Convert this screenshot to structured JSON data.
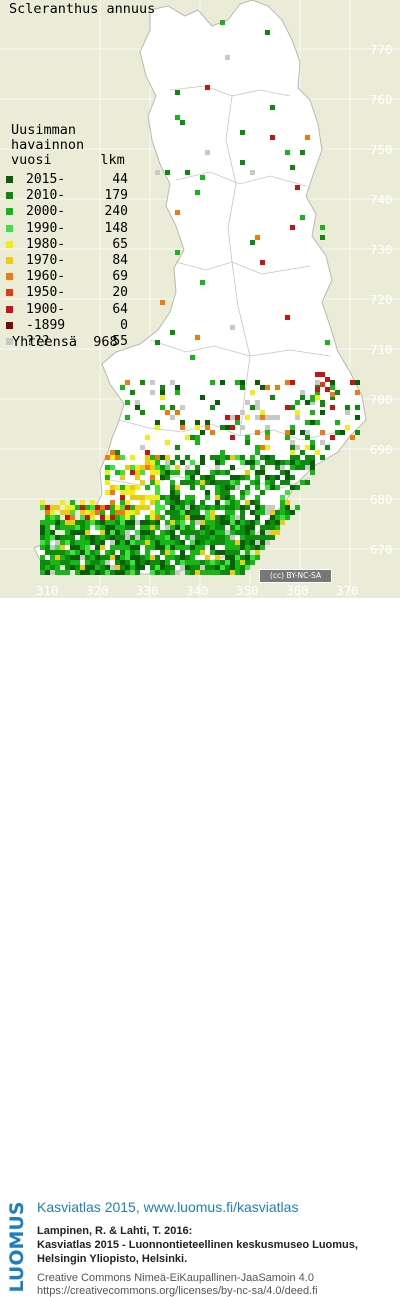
{
  "species": "Scleranthus annuus",
  "legend": {
    "title": "Uusimman\nhavainnon\nvuosi      lkm",
    "rows": [
      {
        "label": "2015-",
        "count": "44",
        "color": "#0a5e0a"
      },
      {
        "label": "2010-",
        "count": "179",
        "color": "#0e8a0e"
      },
      {
        "label": "2000-",
        "count": "240",
        "color": "#16b616"
      },
      {
        "label": "1990-",
        "count": "148",
        "color": "#3ee23e"
      },
      {
        "label": "1980-",
        "count": "65",
        "color": "#f0ee16"
      },
      {
        "label": "1970-",
        "count": "84",
        "color": "#f0c816"
      },
      {
        "label": "1960-",
        "count": "69",
        "color": "#f07a10"
      },
      {
        "label": "1950-",
        "count": "20",
        "color": "#e03c0c"
      },
      {
        "label": "1900-",
        "count": "64",
        "color": "#c41414"
      },
      {
        "label": "-1899",
        "count": "0",
        "color": "#7a0a0a"
      },
      {
        "label": "???",
        "count": "55",
        "color": "#c8c8c8"
      }
    ],
    "total_label": "Yhteensä",
    "total_count": "968"
  },
  "grid": {
    "y_ticks": [
      "770",
      "760",
      "750",
      "740",
      "730",
      "720",
      "710",
      "700",
      "690",
      "680",
      "670"
    ],
    "x_ticks": [
      "310",
      "320",
      "330",
      "340",
      "350",
      "360",
      "370"
    ]
  },
  "license_badge": "(cc) BY-NC-SA",
  "footer": {
    "logo": "LUOMUS",
    "atlas": "Kasviatlas 2015, www.luomus.fi/kasviatlas",
    "citation_1": "Lampinen, R. & Lahti, T. 2016:",
    "citation_2": "Kasviatlas 2015 - Luonnontieteellinen keskusmuseo Luomus,",
    "citation_3": "Helsingin Yliopisto, Helsinki.",
    "license_1": "Creative Commons Nimeä-EiKaupallinen-JaaSamoin 4.0",
    "license_2": "https://creativecommons.org/licenses/by-nc-sa/4.0/deed.fi"
  }
}
